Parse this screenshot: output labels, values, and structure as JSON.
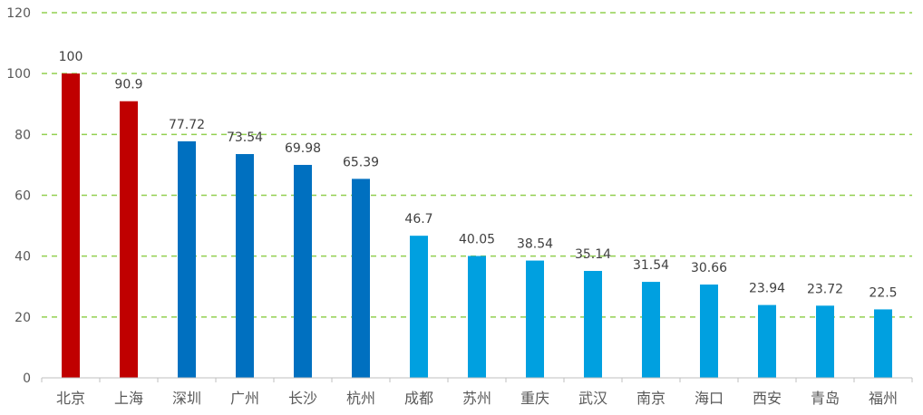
{
  "chart_data": {
    "type": "bar",
    "categories": [
      "北京",
      "上海",
      "深圳",
      "广州",
      "长沙",
      "杭州",
      "成都",
      "苏州",
      "重庆",
      "武汉",
      "南京",
      "海口",
      "西安",
      "青岛",
      "福州"
    ],
    "values": [
      100,
      90.9,
      77.72,
      73.54,
      69.98,
      65.39,
      46.7,
      40.05,
      38.54,
      35.14,
      31.54,
      30.66,
      23.94,
      23.72,
      22.5
    ],
    "value_labels": [
      "100",
      "90.9",
      "77.72",
      "73.54",
      "69.98",
      "65.39",
      "46.7",
      "40.05",
      "38.54",
      "35.14",
      "31.54",
      "30.66",
      "23.94",
      "23.72",
      "22.5"
    ],
    "title": "",
    "xlabel": "",
    "ylabel": "",
    "ylim": [
      0,
      120
    ],
    "yticks": [
      "0",
      "20",
      "40",
      "60",
      "80",
      "100",
      "120"
    ],
    "grid": true,
    "legend": "none",
    "colors": {
      "tier1": "#C00000",
      "tier2": "#0070C0",
      "tier3": "#00A0E0",
      "grid": "#92D050",
      "axis": "#BFBFBF"
    },
    "bar_tiers": [
      "tier1",
      "tier1",
      "tier2",
      "tier2",
      "tier2",
      "tier2",
      "tier3",
      "tier3",
      "tier3",
      "tier3",
      "tier3",
      "tier3",
      "tier3",
      "tier3",
      "tier3"
    ]
  }
}
